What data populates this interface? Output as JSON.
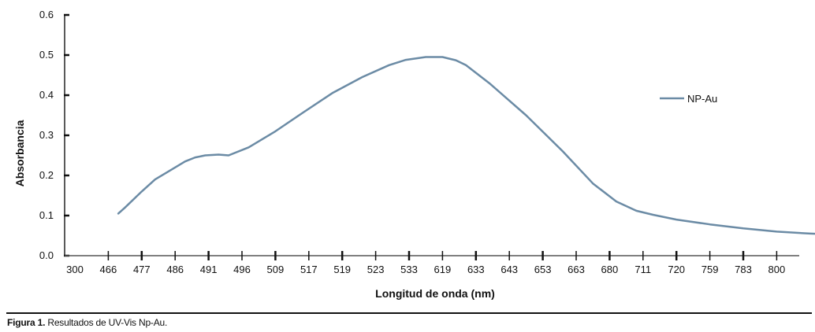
{
  "chart_data": {
    "type": "line",
    "xlabel": "Longitud de onda (nm)",
    "ylabel": "Absorbancia",
    "categories": [
      "300",
      "466",
      "477",
      "486",
      "491",
      "496",
      "509",
      "517",
      "519",
      "523",
      "533",
      "619",
      "633",
      "643",
      "653",
      "663",
      "680",
      "711",
      "720",
      "759",
      "783",
      "800"
    ],
    "y_ticks": [
      "0.0",
      "0.1",
      "0.2",
      "0.3",
      "0.4",
      "0.5",
      "0.6"
    ],
    "ylim": [
      0,
      0.6
    ],
    "grid": false,
    "legend_position": "right",
    "series": [
      {
        "name": "NP-Au",
        "color": "#6b8ba5",
        "x": [
          1.3,
          1.5,
          2,
          2.4,
          2.8,
          3.3,
          3.6,
          3.9,
          4.3,
          4.6,
          5.2,
          6.0,
          6.8,
          7.7,
          8.6,
          9.4,
          9.9,
          10.5,
          11.0,
          11.4,
          11.7,
          12.4,
          13.5,
          14.6,
          15.5,
          16.2,
          16.8,
          17.3,
          18.0,
          19.0,
          20.0,
          21.0,
          22.0,
          22.6
        ],
        "y": [
          0.105,
          0.12,
          0.16,
          0.19,
          0.21,
          0.235,
          0.245,
          0.25,
          0.252,
          0.25,
          0.27,
          0.31,
          0.355,
          0.405,
          0.445,
          0.475,
          0.488,
          0.495,
          0.495,
          0.487,
          0.475,
          0.43,
          0.35,
          0.26,
          0.18,
          0.135,
          0.112,
          0.102,
          0.09,
          0.078,
          0.068,
          0.06,
          0.055,
          0.053
        ]
      }
    ]
  },
  "caption": {
    "label": "Figura 1.",
    "text": " Resultados de UV-Vis Np-Au."
  }
}
